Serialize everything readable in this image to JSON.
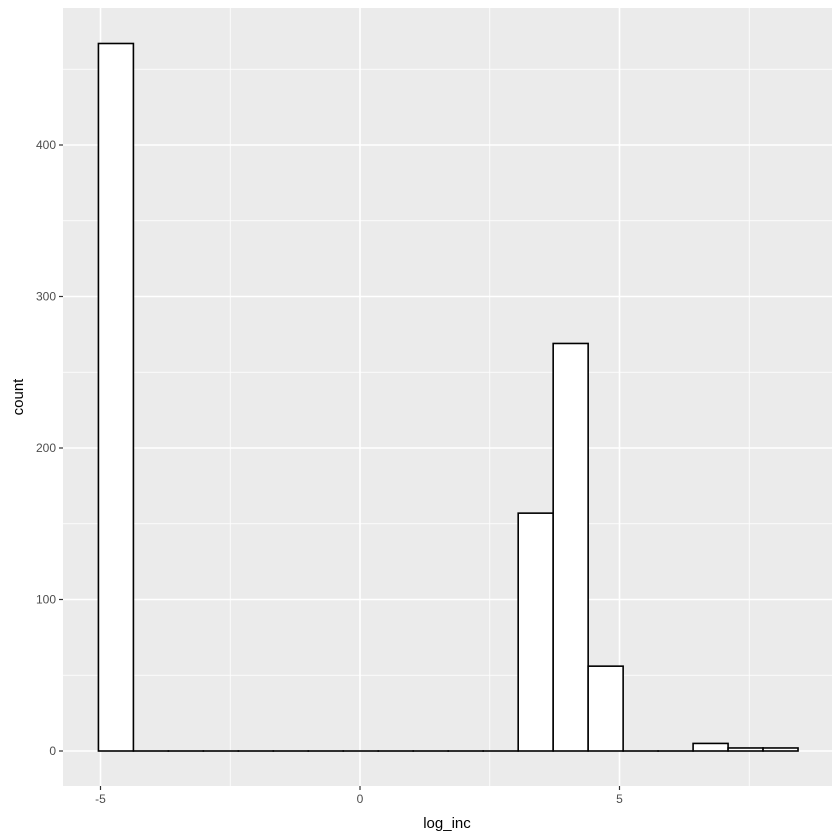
{
  "chart_data": {
    "type": "bar",
    "subtype": "histogram",
    "title": "",
    "xlabel": "log_inc",
    "ylabel": "count",
    "x_ticks": [
      -5,
      0,
      5
    ],
    "y_ticks": [
      0,
      100,
      200,
      300,
      400
    ],
    "xlim": [
      -5.55,
      8.8
    ],
    "ylim": [
      -23,
      490
    ],
    "grid": true,
    "legend": null,
    "bins": {
      "start": -5.04,
      "width": 0.674,
      "count": 20
    },
    "categories": [
      "-4.70",
      "-4.03",
      "-3.35",
      "-2.68",
      "-2.00",
      "-1.33",
      "-0.66",
      "0.02",
      "0.69",
      "1.37",
      "2.04",
      "2.72",
      "3.39",
      "4.06",
      "4.74",
      "5.41",
      "6.09",
      "6.76",
      "7.44",
      "8.11"
    ],
    "values": [
      467,
      0,
      0,
      0,
      0,
      0,
      0,
      0,
      0,
      0,
      0,
      0,
      157,
      269,
      56,
      0,
      0,
      5,
      2,
      2
    ],
    "colors": {
      "panel_bg": "#ebebeb",
      "grid": "#ffffff",
      "bar_fill": "#ffffff",
      "bar_stroke": "#000000",
      "tick_text": "#4d4d4d"
    }
  },
  "labels": {
    "x_title": "log_inc",
    "y_title": "count"
  }
}
